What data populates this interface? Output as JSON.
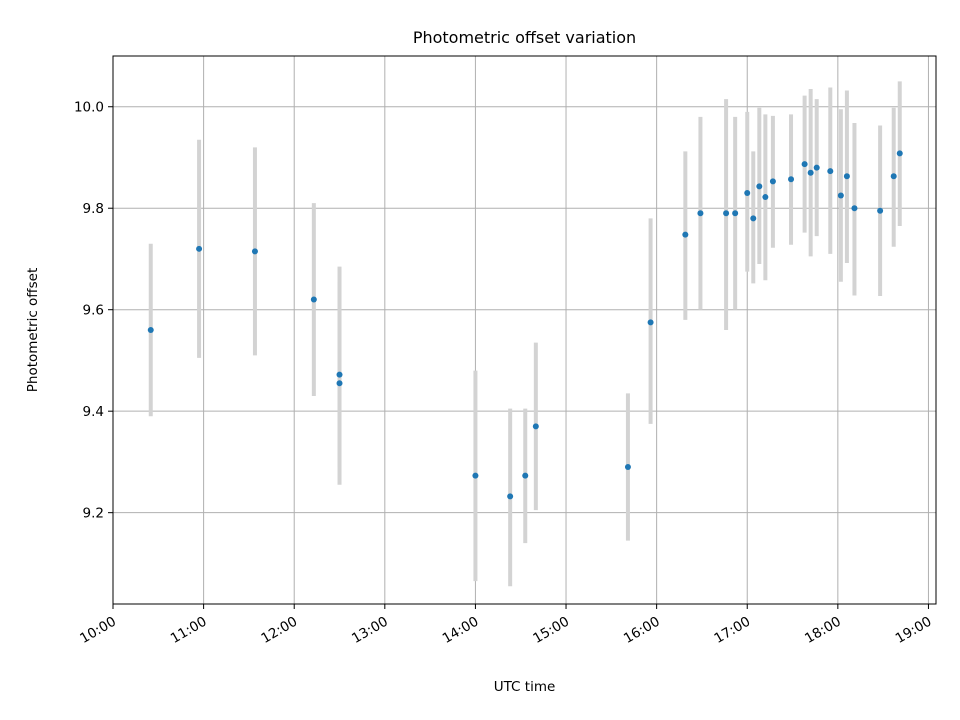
{
  "chart_data": {
    "type": "scatter",
    "title": "Photometric offset variation",
    "xlabel": "UTC time",
    "ylabel": "Photometric offset",
    "xlim": [
      "10:00",
      "19:05"
    ],
    "ylim": [
      9.02,
      10.1
    ],
    "x_ticks": [
      "10:00",
      "11:00",
      "12:00",
      "13:00",
      "14:00",
      "15:00",
      "16:00",
      "17:00",
      "18:00",
      "19:00"
    ],
    "y_ticks": [
      9.2,
      9.4,
      9.6,
      9.8,
      10.0
    ],
    "grid": true,
    "marker_color": "#1f77b4",
    "errorbar_color": "#d3d3d3",
    "points": [
      {
        "x": "10:25",
        "y": 9.56,
        "ylo": 9.39,
        "yhi": 9.73
      },
      {
        "x": "10:57",
        "y": 9.72,
        "ylo": 9.505,
        "yhi": 9.935
      },
      {
        "x": "11:34",
        "y": 9.715,
        "ylo": 9.51,
        "yhi": 9.92
      },
      {
        "x": "12:13",
        "y": 9.62,
        "ylo": 9.43,
        "yhi": 9.81
      },
      {
        "x": "12:30",
        "y": 9.472,
        "ylo": 9.29,
        "yhi": 9.685
      },
      {
        "x": "12:30",
        "y": 9.455,
        "ylo": 9.255,
        "yhi": 9.655
      },
      {
        "x": "14:00",
        "y": 9.273,
        "ylo": 9.065,
        "yhi": 9.48
      },
      {
        "x": "14:23",
        "y": 9.232,
        "ylo": 9.055,
        "yhi": 9.405
      },
      {
        "x": "14:33",
        "y": 9.273,
        "ylo": 9.14,
        "yhi": 9.405
      },
      {
        "x": "14:40",
        "y": 9.37,
        "ylo": 9.205,
        "yhi": 9.535
      },
      {
        "x": "15:41",
        "y": 9.29,
        "ylo": 9.145,
        "yhi": 9.435
      },
      {
        "x": "15:56",
        "y": 9.575,
        "ylo": 9.375,
        "yhi": 9.78
      },
      {
        "x": "16:19",
        "y": 9.748,
        "ylo": 9.58,
        "yhi": 9.912
      },
      {
        "x": "16:29",
        "y": 9.79,
        "ylo": 9.6,
        "yhi": 9.98
      },
      {
        "x": "16:46",
        "y": 9.79,
        "ylo": 9.56,
        "yhi": 10.015
      },
      {
        "x": "16:52",
        "y": 9.79,
        "ylo": 9.6,
        "yhi": 9.98
      },
      {
        "x": "17:00",
        "y": 9.83,
        "ylo": 9.675,
        "yhi": 9.99
      },
      {
        "x": "17:04",
        "y": 9.78,
        "ylo": 9.652,
        "yhi": 9.912
      },
      {
        "x": "17:08",
        "y": 9.843,
        "ylo": 9.69,
        "yhi": 9.998
      },
      {
        "x": "17:12",
        "y": 9.822,
        "ylo": 9.658,
        "yhi": 9.985
      },
      {
        "x": "17:17",
        "y": 9.853,
        "ylo": 9.722,
        "yhi": 9.982
      },
      {
        "x": "17:29",
        "y": 9.857,
        "ylo": 9.728,
        "yhi": 9.985
      },
      {
        "x": "17:38",
        "y": 9.887,
        "ylo": 9.752,
        "yhi": 10.022
      },
      {
        "x": "17:42",
        "y": 9.87,
        "ylo": 9.705,
        "yhi": 10.035
      },
      {
        "x": "17:46",
        "y": 9.88,
        "ylo": 9.745,
        "yhi": 10.015
      },
      {
        "x": "17:55",
        "y": 9.873,
        "ylo": 9.71,
        "yhi": 10.038
      },
      {
        "x": "18:02",
        "y": 9.825,
        "ylo": 9.655,
        "yhi": 9.995
      },
      {
        "x": "18:06",
        "y": 9.863,
        "ylo": 9.692,
        "yhi": 10.032
      },
      {
        "x": "18:11",
        "y": 9.8,
        "ylo": 9.628,
        "yhi": 9.968
      },
      {
        "x": "18:28",
        "y": 9.795,
        "ylo": 9.627,
        "yhi": 9.963
      },
      {
        "x": "18:37",
        "y": 9.863,
        "ylo": 9.724,
        "yhi": 9.998
      },
      {
        "x": "18:41",
        "y": 9.908,
        "ylo": 9.765,
        "yhi": 10.05
      }
    ]
  }
}
